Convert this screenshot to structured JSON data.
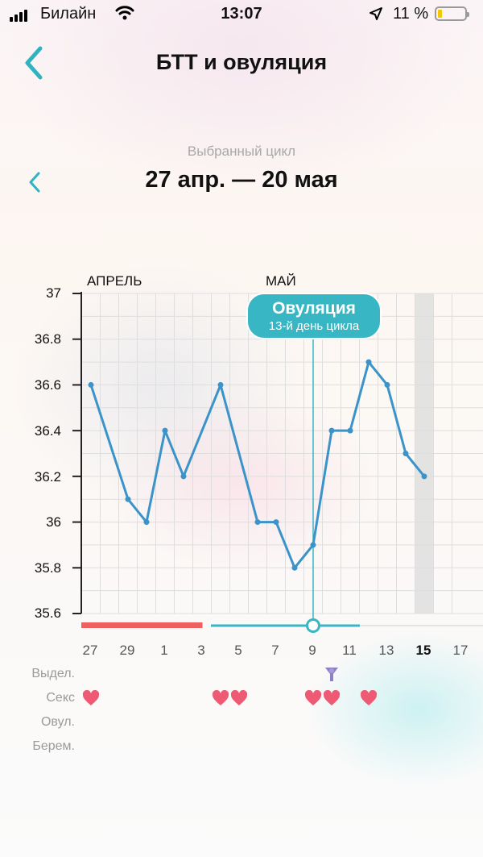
{
  "status_bar": {
    "carrier": "Билайн",
    "time": "13:07",
    "battery_percent": "11 %",
    "battery_level": 0.11,
    "icons": [
      "signal-icon",
      "wifi-icon",
      "location-icon",
      "battery-icon"
    ]
  },
  "header": {
    "title": "БТТ и овуляция",
    "back_icon": "chevron-left-icon"
  },
  "cycle_selector": {
    "caption": "Выбранный цикл",
    "range": "27 апр. — 20 мая",
    "prev_icon": "chevron-left-icon"
  },
  "chart": {
    "months": [
      "АПРЕЛЬ",
      "МАЙ"
    ],
    "y_ticks": [
      "37",
      "36.8",
      "36.6",
      "36.4",
      "36.2",
      "36",
      "35.8",
      "35.6"
    ],
    "x_ticks": [
      "27",
      "29",
      "1",
      "3",
      "5",
      "7",
      "9",
      "11",
      "13",
      "15",
      "17"
    ],
    "today_label": "15",
    "ovulation_badge": {
      "title": "Овуляция",
      "subtitle": "13-й день цикла"
    },
    "colors": {
      "line": "#3a93c9",
      "ovulation": "#39b6c3",
      "period": "#ef6161",
      "heart": "#ee5a73",
      "today_column": "#e0e0e0",
      "discharge": "#8f7fc4"
    }
  },
  "chart_data": {
    "type": "line",
    "x": [
      "27 апр.",
      "28 апр.",
      "29 апр.",
      "30 апр.",
      "1 мая",
      "2 мая",
      "3 мая",
      "4 мая",
      "5 мая",
      "6 мая",
      "7 мая",
      "8 мая",
      "9 мая",
      "10 мая",
      "11 мая",
      "12 мая",
      "13 мая",
      "14 мая",
      "15 мая"
    ],
    "series": [
      {
        "values": [
          36.6,
          null,
          36.1,
          36.0,
          36.4,
          36.2,
          null,
          36.6,
          null,
          36.0,
          36.0,
          35.8,
          35.9,
          36.4,
          36.4,
          36.7,
          36.6,
          36.3,
          36.2
        ]
      }
    ],
    "ylim": [
      35.6,
      37.0
    ],
    "ovulation_date": "9 мая",
    "period_days": [
      "27 апр.",
      "28 апр.",
      "29 апр.",
      "30 апр.",
      "1 мая",
      "2 мая",
      "3 мая"
    ],
    "fertile_days": [
      "4 мая",
      "5 мая",
      "6 мая",
      "7 мая",
      "8 мая",
      "9 мая",
      "10 мая",
      "11 мая"
    ],
    "grid": true
  },
  "tracker_rows": {
    "labels": [
      "Выдел.",
      "Секс",
      "Овул.",
      "Берем."
    ],
    "sex_days": [
      "27 апр.",
      "4 мая",
      "5 мая",
      "9 мая",
      "10 мая",
      "12 мая"
    ],
    "discharge_days": [
      "10 мая"
    ],
    "heart_icon": "heart-icon",
    "discharge_icon": "discharge-drop-icon"
  }
}
